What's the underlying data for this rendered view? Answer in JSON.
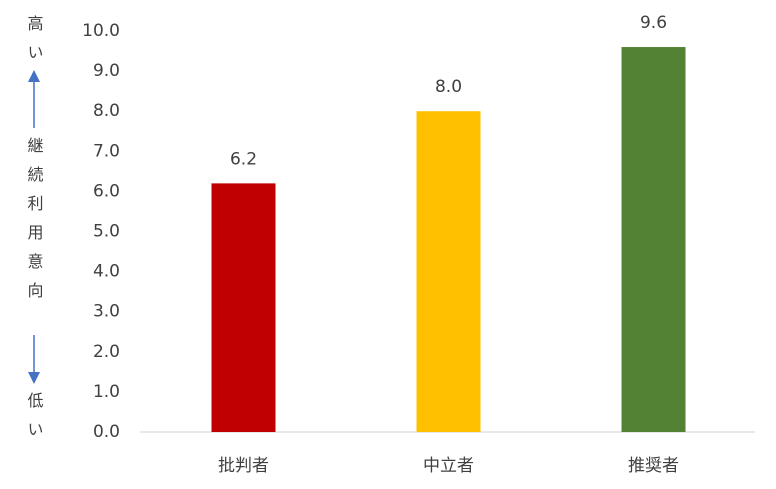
{
  "chart_data": {
    "type": "bar",
    "y_label_top": "高い",
    "ylabel": "継続利用意向",
    "y_label_bottom": "低い",
    "categories": [
      "批判者",
      "中立者",
      "推奨者"
    ],
    "values": [
      6.2,
      8.0,
      9.6
    ],
    "value_labels": [
      "6.2",
      "8.0",
      "9.6"
    ],
    "colors": [
      "#c00000",
      "#ffc000",
      "#548235"
    ],
    "ylim": [
      0,
      10
    ],
    "yticks": [
      {
        "value": 0,
        "label": "0.0"
      },
      {
        "value": 1,
        "label": "1.0"
      },
      {
        "value": 2,
        "label": "2.0"
      },
      {
        "value": 3,
        "label": "3.0"
      },
      {
        "value": 4,
        "label": "4.0"
      },
      {
        "value": 5,
        "label": "5.0"
      },
      {
        "value": 6,
        "label": "6.0"
      },
      {
        "value": 7,
        "label": "7.0"
      },
      {
        "value": 8,
        "label": "8.0"
      },
      {
        "value": 9,
        "label": "9.0"
      },
      {
        "value": 10,
        "label": "10.0"
      }
    ],
    "grid": false
  }
}
